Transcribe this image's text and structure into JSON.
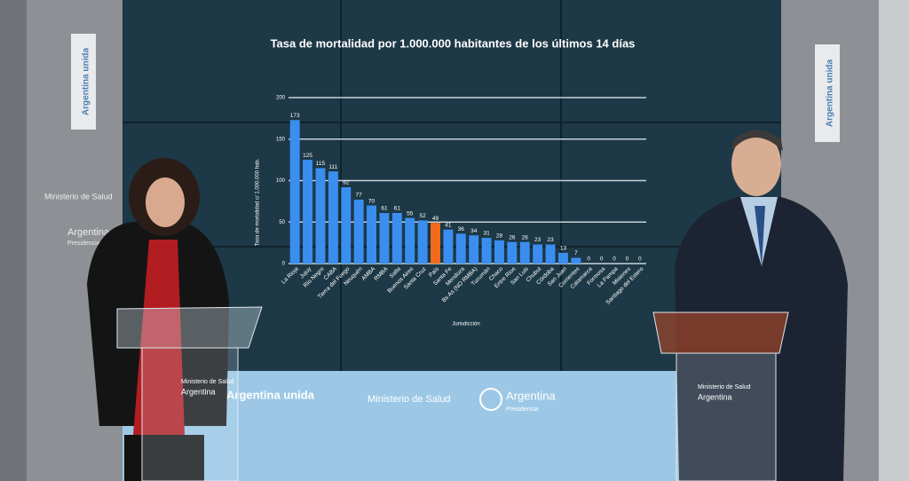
{
  "chart_data": {
    "type": "bar",
    "title": "Tasa de mortalidad por 1.000.000 habitantes  de los últimos 14 días",
    "y_label": "Tasa de mortalidad c/ 1.000.000 hab.",
    "x_label": "Jurisdicción",
    "categories": [
      "La Rioja",
      "Jujuy",
      "Río Negro",
      "CABA",
      "Tierra del Fuego",
      "Neuquén",
      "AMBA",
      "RMBA",
      "Salta",
      "Buenos Aires",
      "Santa Cruz",
      "País",
      "Santa Fe",
      "Mendoza",
      "Bs As (NO RMBA)",
      "Tucumán",
      "Chaco",
      "Entre Ríos",
      "San Luis",
      "Chubut",
      "Córdoba",
      "San Juan",
      "Corrientes",
      "Catamarca",
      "Formosa",
      "La Pampa",
      "Misiones",
      "Santiago del Estero"
    ],
    "values": [
      173,
      125,
      115,
      111,
      92,
      77,
      70,
      61,
      61,
      55,
      52,
      49,
      41,
      36,
      34,
      31,
      28,
      26,
      26,
      23,
      23,
      13,
      7,
      0,
      0,
      0,
      0,
      0
    ],
    "colors": [
      "#3a8ef0",
      "#3a8ef0",
      "#3a8ef0",
      "#3a8ef0",
      "#3a8ef0",
      "#3a8ef0",
      "#3a8ef0",
      "#3a8ef0",
      "#3a8ef0",
      "#3a8ef0",
      "#3a8ef0",
      "#f26b1d",
      "#3a8ef0",
      "#3a8ef0",
      "#3a8ef0",
      "#3a8ef0",
      "#3a8ef0",
      "#3a8ef0",
      "#3a8ef0",
      "#3a8ef0",
      "#3a8ef0",
      "#3a8ef0",
      "#3a8ef0",
      "#3a8ef0",
      "#3a8ef0",
      "#3a8ef0",
      "#3a8ef0",
      "#3a8ef0"
    ],
    "ylim": [
      0,
      200
    ],
    "yticks": [
      0,
      50,
      100,
      150,
      200
    ],
    "grid": true
  },
  "scene": {
    "left_banner": "Argentina unida",
    "right_banner": "Argentina unida",
    "left_ministry": "Ministerio de Salud",
    "left_argentina": "Argentina",
    "left_presidencia": "Presidencia",
    "led_unida": "Argentina unida",
    "led_ministry": "Ministerio de Salud",
    "led_argentina": "Argentina",
    "led_presidencia": "Presidencia",
    "podium_left_ministry": "Ministerio de Salud",
    "podium_left_argentina": "Argentina",
    "podium_right_ministry": "Ministerio de Salud",
    "podium_right_argentina": "Argentina"
  }
}
